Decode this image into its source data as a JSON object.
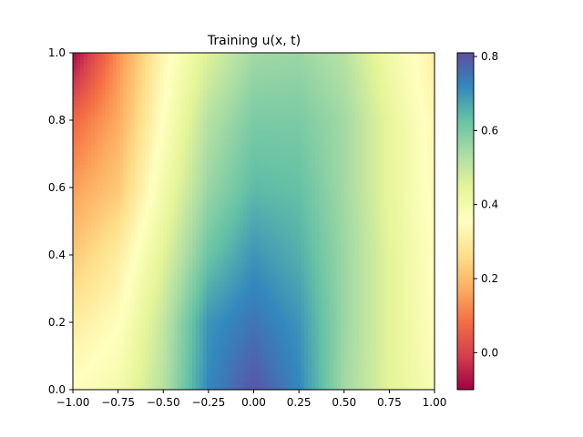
{
  "chart_data": {
    "type": "heatmap",
    "title": "Training u(x, t)",
    "xlabel": "",
    "ylabel": "",
    "xlim": [
      -1.0,
      1.0
    ],
    "ylim": [
      0.0,
      1.0
    ],
    "x_ticks": [
      "−1.00",
      "−0.75",
      "−0.50",
      "−0.25",
      "0.00",
      "0.25",
      "0.50",
      "0.75",
      "1.00"
    ],
    "x_tick_values": [
      -1.0,
      -0.75,
      -0.5,
      -0.25,
      0.0,
      0.25,
      0.5,
      0.75,
      1.0
    ],
    "y_ticks": [
      "0.0",
      "0.2",
      "0.4",
      "0.6",
      "0.8",
      "1.0"
    ],
    "y_tick_values": [
      0.0,
      0.2,
      0.4,
      0.6,
      0.8,
      1.0
    ],
    "colorbar": {
      "colormap": "Spectral",
      "range": [
        -0.1,
        0.81
      ],
      "ticks": [
        "0.0",
        "0.2",
        "0.4",
        "0.6",
        "0.8"
      ],
      "tick_values": [
        0.0,
        0.2,
        0.4,
        0.6,
        0.8
      ]
    },
    "x": [
      -1.0,
      -0.75,
      -0.5,
      -0.25,
      0.0,
      0.25,
      0.5,
      0.75,
      1.0
    ],
    "t": [
      0.0,
      0.2,
      0.4,
      0.6,
      0.8,
      1.0
    ],
    "values": [
      [
        0.36,
        0.4,
        0.52,
        0.72,
        0.8,
        0.72,
        0.55,
        0.45,
        0.38
      ],
      [
        0.3,
        0.35,
        0.5,
        0.7,
        0.75,
        0.7,
        0.56,
        0.45,
        0.36
      ],
      [
        0.22,
        0.3,
        0.45,
        0.62,
        0.7,
        0.66,
        0.56,
        0.45,
        0.35
      ],
      [
        0.15,
        0.22,
        0.4,
        0.56,
        0.64,
        0.63,
        0.55,
        0.44,
        0.34
      ],
      [
        0.07,
        0.17,
        0.36,
        0.52,
        0.6,
        0.6,
        0.55,
        0.44,
        0.33
      ],
      [
        -0.09,
        0.13,
        0.33,
        0.46,
        0.55,
        0.56,
        0.52,
        0.41,
        0.31
      ]
    ]
  }
}
